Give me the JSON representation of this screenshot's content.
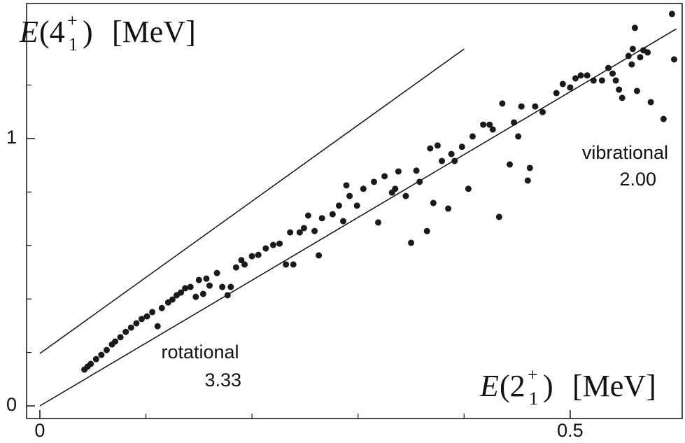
{
  "chart_data": {
    "type": "scatter",
    "ylabel": {
      "symbol": "E",
      "open": "(4",
      "sub": "1",
      "sup": "+",
      "close": ")",
      "unit": "[MeV]"
    },
    "xlabel": {
      "symbol": "E",
      "open": "(2",
      "sub": "1",
      "sup": "+",
      "close": ")",
      "unit": "[MeV]"
    },
    "annotations": [
      "rotational",
      "3.33",
      "vibrational",
      "2.00"
    ],
    "xlim": [
      -0.0125,
      0.6056
    ],
    "ylim": [
      -0.047,
      1.505
    ],
    "xticks": [
      0,
      0.5
    ],
    "xminorticks": [
      0.1,
      0.2,
      0.3,
      0.4
    ],
    "yticks": [
      0,
      1
    ],
    "yminorticks": [
      0.2,
      0.4,
      0.6,
      0.8,
      1.2,
      1.4
    ],
    "color": "#1a1a1a",
    "lines": [
      {
        "x": [
          0,
          0.6
        ],
        "y": [
          0,
          1.41
        ]
      },
      {
        "x": [
          0,
          0.4
        ],
        "y": [
          0.196,
          1.335
        ]
      }
    ],
    "x": [
      0.042,
      0.045,
      0.048,
      0.053,
      0.058,
      0.063,
      0.068,
      0.071,
      0.076,
      0.081,
      0.086,
      0.091,
      0.096,
      0.101,
      0.106,
      0.111,
      0.115,
      0.121,
      0.125,
      0.129,
      0.133,
      0.137,
      0.142,
      0.147,
      0.15,
      0.154,
      0.157,
      0.16,
      0.167,
      0.172,
      0.177,
      0.18,
      0.185,
      0.19,
      0.193,
      0.2,
      0.206,
      0.213,
      0.22,
      0.226,
      0.232,
      0.236,
      0.239,
      0.245,
      0.249,
      0.253,
      0.259,
      0.263,
      0.266,
      0.276,
      0.282,
      0.286,
      0.289,
      0.292,
      0.299,
      0.305,
      0.315,
      0.319,
      0.325,
      0.332,
      0.335,
      0.338,
      0.345,
      0.35,
      0.355,
      0.358,
      0.365,
      0.368,
      0.371,
      0.375,
      0.379,
      0.385,
      0.388,
      0.391,
      0.398,
      0.404,
      0.408,
      0.418,
      0.424,
      0.427,
      0.433,
      0.436,
      0.443,
      0.447,
      0.451,
      0.454,
      0.46,
      0.462,
      0.467,
      0.474,
      0.487,
      0.493,
      0.5,
      0.505,
      0.51,
      0.516,
      0.522,
      0.53,
      0.536,
      0.54,
      0.543,
      0.546,
      0.549,
      0.555,
      0.558,
      0.559,
      0.563,
      0.566,
      0.569,
      0.573,
      0.576,
      0.588,
      0.596,
      0.598,
      0.561
    ],
    "values": [
      0.136,
      0.147,
      0.157,
      0.175,
      0.191,
      0.209,
      0.23,
      0.241,
      0.257,
      0.277,
      0.293,
      0.309,
      0.325,
      0.335,
      0.351,
      0.298,
      0.366,
      0.387,
      0.398,
      0.414,
      0.424,
      0.44,
      0.445,
      0.408,
      0.471,
      0.419,
      0.476,
      0.45,
      0.497,
      0.445,
      0.414,
      0.445,
      0.518,
      0.545,
      0.529,
      0.56,
      0.565,
      0.589,
      0.602,
      0.607,
      0.529,
      0.649,
      0.529,
      0.649,
      0.665,
      0.712,
      0.654,
      0.563,
      0.702,
      0.717,
      0.749,
      0.691,
      0.825,
      0.785,
      0.749,
      0.812,
      0.838,
      0.686,
      0.859,
      0.798,
      0.812,
      0.877,
      0.785,
      0.61,
      0.88,
      0.838,
      0.654,
      0.963,
      0.759,
      0.974,
      0.916,
      0.738,
      0.942,
      0.916,
      0.969,
      0.812,
      1.008,
      1.052,
      1.052,
      1.034,
      0.707,
      1.131,
      0.903,
      1.06,
      1.008,
      1.12,
      0.843,
      0.89,
      1.12,
      1.099,
      1.17,
      1.204,
      1.191,
      1.225,
      1.236,
      1.236,
      1.217,
      1.217,
      1.264,
      1.243,
      1.217,
      1.183,
      1.152,
      1.309,
      1.277,
      1.335,
      1.178,
      1.304,
      1.33,
      1.322,
      1.136,
      1.073,
      1.466,
      1.296,
      1.414
    ]
  }
}
